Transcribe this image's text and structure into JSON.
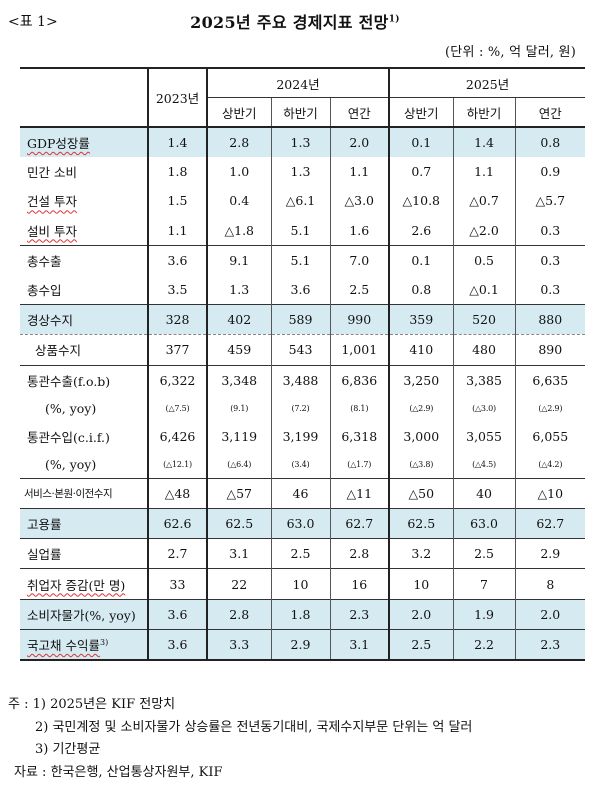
{
  "header": {
    "tag": "<표 1>",
    "title": "2025년 주요 경제지표 전망",
    "title_sup": "1)",
    "unit": "(단위 : %, 억 달러, 원)"
  },
  "table": {
    "col_2023": "2023년",
    "col_2024": "2024년",
    "col_2025": "2025년",
    "sub_h1": "상반기",
    "sub_h2": "하반기",
    "sub_year": "연간",
    "rows": [
      {
        "label": "GDP성장률",
        "values": [
          "1.4",
          "2.8",
          "1.3",
          "2.0",
          "0.1",
          "1.4",
          "0.8"
        ]
      },
      {
        "label": "민간 소비",
        "values": [
          "1.8",
          "1.0",
          "1.3",
          "1.1",
          "0.7",
          "1.1",
          "0.9"
        ]
      },
      {
        "label": "건설 투자",
        "values": [
          "1.5",
          "0.4",
          "△6.1",
          "△3.0",
          "△10.8",
          "△0.7",
          "△5.7"
        ]
      },
      {
        "label": "설비 투자",
        "values": [
          "1.1",
          "△1.8",
          "5.1",
          "1.6",
          "2.6",
          "△2.0",
          "0.3"
        ]
      },
      {
        "label": "총수출",
        "values": [
          "3.6",
          "9.1",
          "5.1",
          "7.0",
          "0.1",
          "0.5",
          "0.3"
        ]
      },
      {
        "label": "총수입",
        "values": [
          "3.5",
          "1.3",
          "3.6",
          "2.5",
          "0.8",
          "△0.1",
          "0.3"
        ]
      },
      {
        "label": "경상수지",
        "values": [
          "328",
          "402",
          "589",
          "990",
          "359",
          "520",
          "880"
        ]
      },
      {
        "label": "상품수지",
        "values": [
          "377",
          "459",
          "543",
          "1,001",
          "410",
          "480",
          "890"
        ]
      },
      {
        "label": "통관수출(f.o.b)",
        "values": [
          "6,322",
          "3,348",
          "3,488",
          "6,836",
          "3,250",
          "3,385",
          "6,635"
        ]
      },
      {
        "label": "(%, yoy)",
        "values": [
          "(△7.5)",
          "(9.1)",
          "(7.2)",
          "(8.1)",
          "(△2.9)",
          "(△3.0)",
          "(△2.9)"
        ]
      },
      {
        "label": "통관수입(c.i.f.)",
        "values": [
          "6,426",
          "3,119",
          "3,199",
          "6,318",
          "3,000",
          "3,055",
          "6,055"
        ]
      },
      {
        "label": "(%, yoy)",
        "values": [
          "(△12.1)",
          "(△6.4)",
          "(3.4)",
          "(△1.7)",
          "(△3.8)",
          "(△4.5)",
          "(△4.2)"
        ]
      },
      {
        "label": "서비스·본원·이전수지",
        "values": [
          "△48",
          "△57",
          "46",
          "△11",
          "△50",
          "40",
          "△10"
        ]
      },
      {
        "label": "고용률",
        "values": [
          "62.6",
          "62.5",
          "63.0",
          "62.7",
          "62.5",
          "63.0",
          "62.7"
        ]
      },
      {
        "label": "실업률",
        "values": [
          "2.7",
          "3.1",
          "2.5",
          "2.8",
          "3.2",
          "2.5",
          "2.9"
        ]
      },
      {
        "label": "취업자 증감(만 명)",
        "values": [
          "33",
          "22",
          "10",
          "16",
          "10",
          "7",
          "8"
        ]
      },
      {
        "label": "소비자물가(%, yoy)",
        "values": [
          "3.6",
          "2.8",
          "1.8",
          "2.3",
          "2.0",
          "1.9",
          "2.0"
        ]
      },
      {
        "label": "국고채 수익률",
        "label_sup": "3)",
        "values": [
          "3.6",
          "3.3",
          "2.9",
          "3.1",
          "2.5",
          "2.2",
          "2.3"
        ]
      }
    ]
  },
  "notes": {
    "prefix": "주 :",
    "n1": "1)  2025년은  KIF  전망치",
    "n2": "2)  국민계정  및  소비자물가  상승률은  전년동기대비,  국제수지부문  단위는  억  달러",
    "n3": "3)  기간평균",
    "source": "자료 : 한국은행, 산업통상자원부, KIF"
  }
}
